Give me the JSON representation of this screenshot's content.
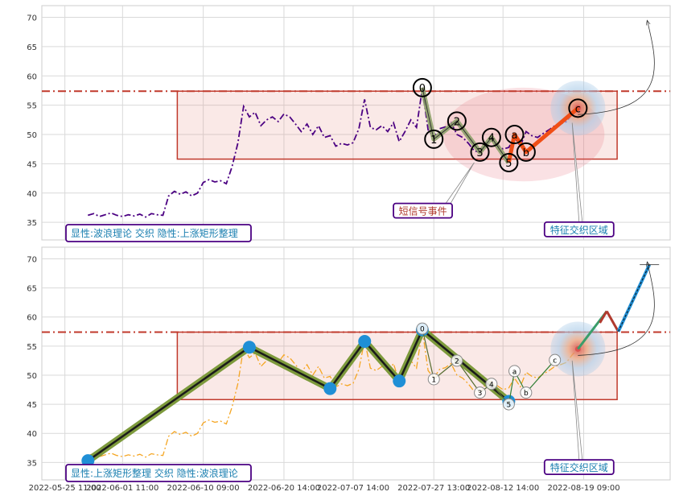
{
  "chart_data": [
    {
      "type": "line",
      "panel": "top",
      "ylim": [
        32,
        72
      ],
      "yticks": [
        35,
        40,
        45,
        50,
        55,
        60,
        65,
        70
      ],
      "grid": true,
      "hline": 57.4,
      "rect": {
        "x0": 8.75,
        "x1": 46.9,
        "y0": 45.8,
        "y1": 57.4
      },
      "ellipse": {
        "cx": 38.8,
        "cy": 50.0,
        "rx": 7.0,
        "ry": 8.0
      },
      "price_color": "#4b0082",
      "price_series": [
        [
          1.0,
          36.2
        ],
        [
          1.5,
          36.5
        ],
        [
          2.0,
          36.0
        ],
        [
          2.5,
          36.3
        ],
        [
          3.0,
          36.6
        ],
        [
          3.5,
          36.2
        ],
        [
          4.0,
          36.0
        ],
        [
          4.5,
          36.3
        ],
        [
          5.0,
          36.1
        ],
        [
          5.5,
          36.4
        ],
        [
          6.0,
          35.9
        ],
        [
          6.5,
          36.5
        ],
        [
          7.0,
          36.3
        ],
        [
          7.5,
          36.2
        ],
        [
          8.0,
          39.5
        ],
        [
          8.5,
          40.3
        ],
        [
          9.0,
          39.8
        ],
        [
          9.5,
          40.2
        ],
        [
          10.0,
          39.5
        ],
        [
          10.5,
          40.0
        ],
        [
          11.0,
          41.8
        ],
        [
          11.5,
          42.3
        ],
        [
          12.0,
          41.9
        ],
        [
          12.5,
          42.1
        ],
        [
          13.0,
          41.6
        ],
        [
          13.5,
          44.5
        ],
        [
          14.0,
          48.5
        ],
        [
          14.5,
          54.8
        ],
        [
          15.0,
          53.0
        ],
        [
          15.5,
          53.8
        ],
        [
          16.0,
          51.5
        ],
        [
          16.5,
          52.5
        ],
        [
          17.0,
          53.0
        ],
        [
          17.5,
          52.2
        ],
        [
          18.0,
          53.5
        ],
        [
          18.5,
          53.0
        ],
        [
          19.0,
          51.8
        ],
        [
          19.5,
          50.5
        ],
        [
          20.0,
          51.8
        ],
        [
          20.5,
          50.0
        ],
        [
          21.0,
          51.5
        ],
        [
          21.5,
          49.5
        ],
        [
          22.0,
          49.8
        ],
        [
          22.5,
          48.0
        ],
        [
          23.0,
          48.5
        ],
        [
          23.5,
          48.2
        ],
        [
          24.0,
          48.6
        ],
        [
          24.5,
          51.0
        ],
        [
          25.0,
          56.0
        ],
        [
          25.5,
          51.2
        ],
        [
          26.0,
          50.8
        ],
        [
          26.5,
          51.5
        ],
        [
          27.0,
          50.5
        ],
        [
          27.5,
          52.0
        ],
        [
          28.0,
          48.8
        ],
        [
          28.5,
          50.5
        ],
        [
          29.0,
          52.5
        ],
        [
          29.5,
          51.2
        ],
        [
          30.0,
          57.8
        ],
        [
          30.5,
          50.8
        ],
        [
          31.0,
          49.5
        ],
        [
          31.5,
          51.0
        ],
        [
          32.0,
          51.3
        ],
        [
          32.5,
          52.0
        ],
        [
          33.0,
          50.0
        ],
        [
          33.5,
          49.5
        ],
        [
          34.0,
          48.5
        ],
        [
          34.5,
          47.2
        ],
        [
          35.0,
          47.0
        ],
        [
          35.5,
          48.5
        ],
        [
          36.0,
          49.0
        ],
        [
          36.5,
          48.2
        ],
        [
          37.0,
          47.5
        ],
        [
          37.5,
          47.8
        ],
        [
          38.0,
          49.5
        ],
        [
          38.5,
          48.0
        ],
        [
          39.0,
          50.5
        ],
        [
          39.5,
          49.8
        ],
        [
          40.0,
          49.5
        ],
        [
          40.5,
          50.2
        ],
        [
          41.0,
          50.8
        ],
        [
          41.5,
          51.5
        ],
        [
          42.0,
          51.8
        ],
        [
          42.5,
          52.2
        ],
        [
          43.0,
          53.5
        ],
        [
          43.5,
          54.5
        ]
      ],
      "wave_points": [
        [
          30.0,
          58.0
        ],
        [
          31.0,
          49.2
        ],
        [
          33.0,
          52.3
        ],
        [
          35.0,
          47.0
        ],
        [
          36.0,
          49.5
        ],
        [
          37.5,
          45.2
        ]
      ],
      "wave_labels": [
        "0",
        "1",
        "2",
        "3",
        "4",
        "5"
      ],
      "abc_points": [
        [
          37.5,
          45.2
        ],
        [
          38.0,
          50.0
        ],
        [
          39.0,
          47.0
        ],
        [
          43.5,
          54.5
        ]
      ],
      "abc_labels": [
        "a",
        "b",
        "c"
      ],
      "target": {
        "x": 43.5,
        "y": 54.5
      },
      "arrow_to": {
        "x": 49.5,
        "y": 69.5
      },
      "label_box": "显性:波浪理论 交织 隐性:上涨矩形整理",
      "callouts": [
        {
          "text": "短信号事件",
          "x": 27.5,
          "y": 37.0,
          "point_x": 34.5,
          "point_y": 45.2
        },
        {
          "text": "特征交织区域",
          "x": 40.6,
          "y": 33.8,
          "point_x": 43.0,
          "point_y": 52.0
        }
      ]
    },
    {
      "type": "line",
      "panel": "bottom",
      "ylim": [
        32,
        72
      ],
      "yticks": [
        35,
        40,
        45,
        50,
        55,
        60,
        65,
        70
      ],
      "grid": true,
      "hline": 57.4,
      "rect": {
        "x0": 8.75,
        "x1": 46.9,
        "y0": 45.8,
        "y1": 57.4
      },
      "price_color": "#f5a623",
      "big_wave": [
        [
          1.0,
          35.3
        ],
        [
          15.0,
          54.8
        ],
        [
          22.0,
          47.7
        ],
        [
          25.0,
          55.8
        ],
        [
          28.0,
          49.0
        ],
        [
          30.0,
          57.8
        ],
        [
          37.5,
          45.5
        ]
      ],
      "small_wave": [
        [
          30.0,
          58.0
        ],
        [
          31.0,
          49.3
        ],
        [
          33.0,
          52.5
        ],
        [
          35.0,
          47.0
        ],
        [
          36.0,
          48.5
        ],
        [
          37.5,
          45.0
        ]
      ],
      "small_labels": [
        "0",
        "1",
        "2",
        "3",
        "4",
        "5"
      ],
      "abc_points": [
        [
          37.5,
          45.0
        ],
        [
          38.0,
          50.7
        ],
        [
          39.0,
          47.0
        ],
        [
          41.5,
          52.6
        ]
      ],
      "abc_labels": [
        "a",
        "b",
        "c"
      ],
      "forecast": [
        [
          43.5,
          54.5
        ],
        [
          46.0,
          61.0
        ],
        [
          47.0,
          57.5
        ],
        [
          49.7,
          69.0
        ]
      ],
      "target": {
        "x": 43.5,
        "y": 54.5
      },
      "arrow_to": {
        "x": 49.5,
        "y": 69.5
      },
      "label_box": "显性:上涨矩形整理 交织 隐性:波浪理论",
      "callouts": [
        {
          "text": "特征交织区域",
          "x": 40.6,
          "y": 34.2,
          "point_x": 43.0,
          "point_y": 52.5
        }
      ],
      "x_tick_labels": [
        "2022-05-25 11:00",
        "2022-06-01 11:00",
        "2022-06-10 09:00",
        "2022-06-20 14:00",
        "2022-07-07 14:00",
        "2022-07-27 13:00",
        "2022-08-12 14:00",
        "2022-08-19 09:00"
      ],
      "x_tick_positions": [
        -1,
        4,
        11,
        18,
        24,
        31,
        37,
        44
      ]
    }
  ]
}
